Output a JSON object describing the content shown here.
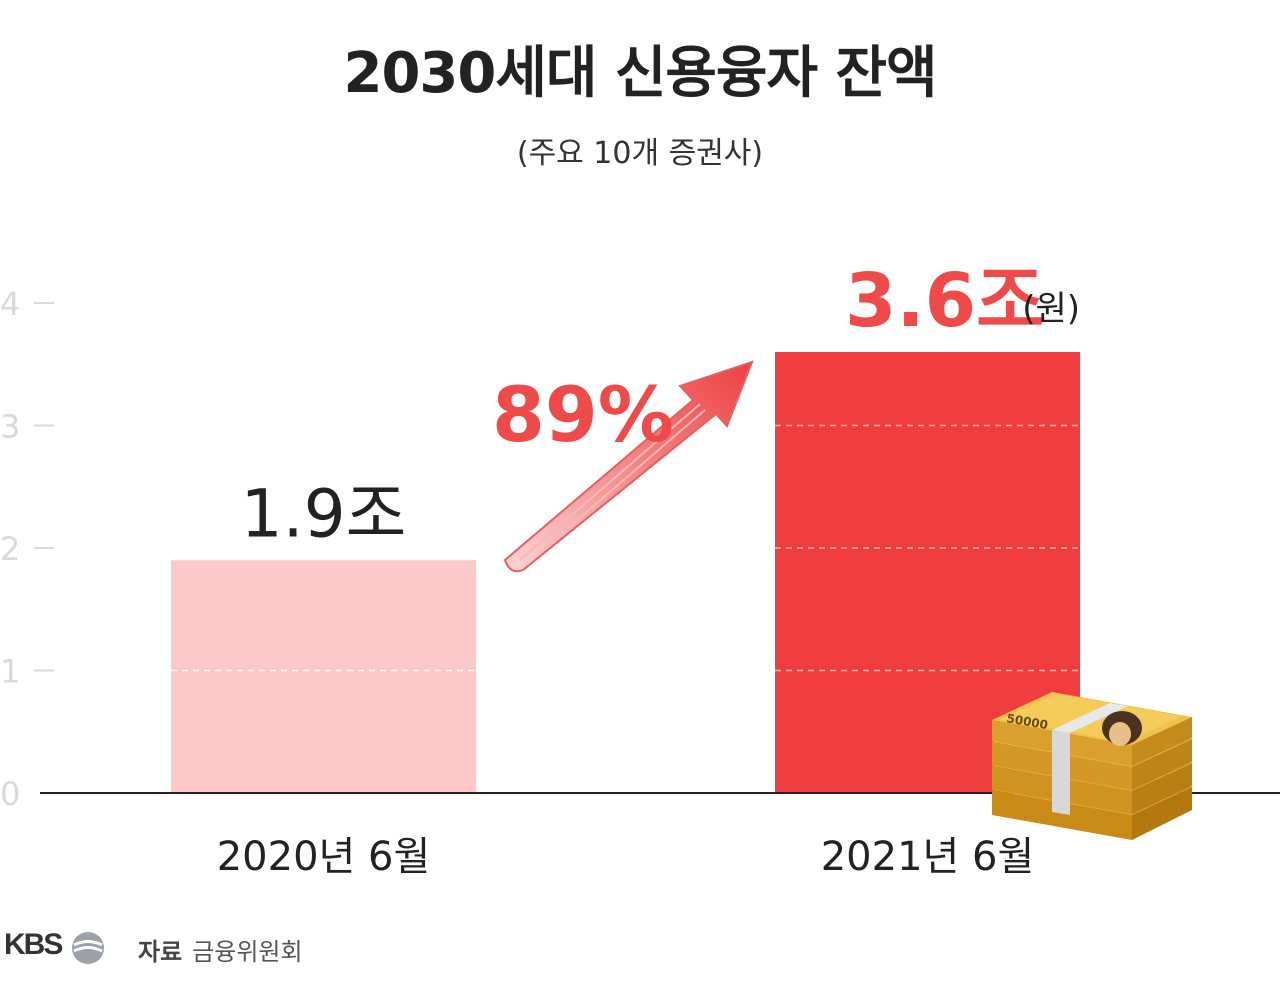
{
  "header": {
    "title": "2030세대 신용융자 잔액",
    "subtitle": "(주요 10개 증권사)"
  },
  "chart_data": {
    "type": "bar",
    "title": "2030세대 신용융자 잔액",
    "subtitle": "(주요 10개 증권사)",
    "categories": [
      "2020년 6월",
      "2021년 6월"
    ],
    "values": [
      1.9,
      3.6
    ],
    "data_labels": [
      "1.9조",
      "3.6조"
    ],
    "unit_label": "(원)",
    "ylim": [
      0,
      4.5
    ],
    "y_ticks": [
      0,
      1,
      2,
      3,
      4
    ],
    "grid": "dashed lines inside bars",
    "annotation": {
      "text": "89%",
      "icon": "arrow-up-right-icon"
    },
    "colors": {
      "bar_2020": "#fcc8c8",
      "bar_2021": "#ef3d3f",
      "accent": "#ef4a4a",
      "axis": "#222222",
      "tick": "#d9d9d9"
    }
  },
  "decoration": {
    "icon": "money-stack-icon",
    "banknote_text": "50000"
  },
  "footer": {
    "logo": "KBS",
    "source_key": "자료",
    "source_value": "금융위원회"
  }
}
